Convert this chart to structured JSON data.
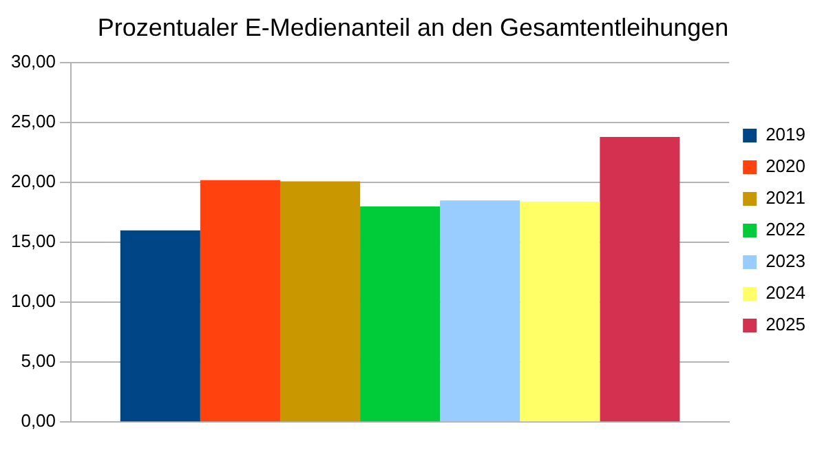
{
  "chart_data": {
    "type": "bar",
    "title": "Prozentualer E-Medienanteil an den Gesamtentleihungen",
    "categories": [
      null
    ],
    "series": [
      {
        "name": "2019",
        "color": "#004586",
        "values": [
          16.0
        ]
      },
      {
        "name": "2020",
        "color": "#ff420e",
        "values": [
          20.2
        ]
      },
      {
        "name": "2021",
        "color": "#c99700",
        "values": [
          20.1
        ]
      },
      {
        "name": "2022",
        "color": "#00cc3a",
        "values": [
          18.0
        ]
      },
      {
        "name": "2023",
        "color": "#99ccff",
        "values": [
          18.5
        ]
      },
      {
        "name": "2024",
        "color": "#ffff66",
        "values": [
          18.4
        ]
      },
      {
        "name": "2025",
        "color": "#d4304f",
        "values": [
          23.8
        ]
      }
    ],
    "ylim": [
      0,
      30
    ],
    "yticks": [
      {
        "value": 0,
        "label": "0,00"
      },
      {
        "value": 5,
        "label": "5,00"
      },
      {
        "value": 10,
        "label": "10,00"
      },
      {
        "value": 15,
        "label": "15,00"
      },
      {
        "value": 20,
        "label": "20,00"
      },
      {
        "value": 25,
        "label": "25,00"
      },
      {
        "value": 30,
        "label": "30,00"
      }
    ],
    "grid": "y",
    "legend": "right"
  }
}
